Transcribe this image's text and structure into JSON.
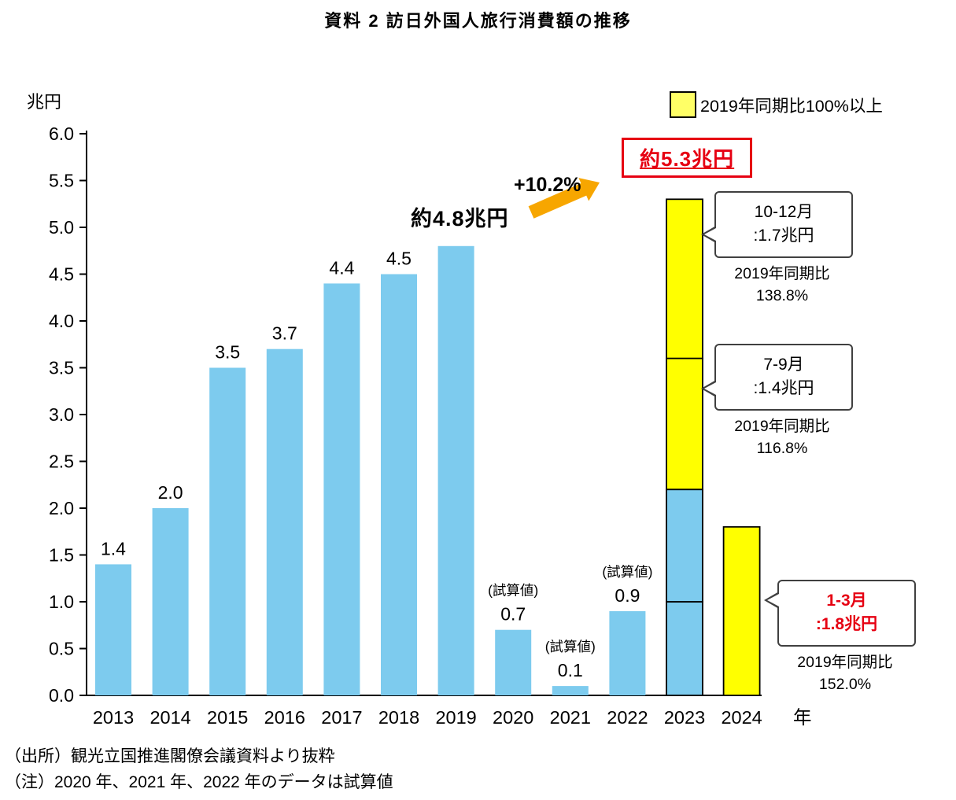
{
  "title": "資料 2 訪日外国人旅行消費額の推移",
  "y_axis_unit": "兆円",
  "legend": {
    "label": "2019年同期比100%以上"
  },
  "annotations": {
    "value_2019": "約4.8兆円",
    "growth": "+10.2%",
    "value_2023": "約5.3兆円"
  },
  "callouts": [
    {
      "line1": "10-12月",
      "line2": ":1.7兆円",
      "sub1": "2019年同期比",
      "sub2": "138.8%"
    },
    {
      "line1": "7-9月",
      "line2": ":1.4兆円",
      "sub1": "2019年同期比",
      "sub2": "116.8%"
    },
    {
      "line1": "1-3月",
      "line2": ":1.8兆円",
      "sub1": "2019年同期比",
      "sub2": "152.0%"
    }
  ],
  "notes": [
    "（出所）観光立国推進閣僚会議資料より抜粋",
    "（注）2020 年、2021 年、2022 年のデータは試算値"
  ],
  "chart_data": {
    "type": "bar",
    "title": "資料 2 訪日外国人旅行消費額の推移",
    "ylabel": "兆円",
    "xlabel": "年",
    "ylim": [
      0,
      6.0
    ],
    "ytick_labels": [
      "0.0",
      "0.5",
      "1.0",
      "1.5",
      "2.0",
      "2.5",
      "3.0",
      "3.5",
      "4.0",
      "4.5",
      "5.0",
      "5.5",
      "6.0"
    ],
    "legend_entries": [
      "2019年同期比100%以上"
    ],
    "colors": {
      "blue": "#7dcbee",
      "yellow": "#ffff00",
      "legend_yellow": "#ffff66",
      "red": "#e60012",
      "orange": "#f7a600"
    },
    "bars": [
      {
        "year": "2013",
        "label": "1.4",
        "segments": [
          {
            "value": 1.4,
            "color": "blue"
          }
        ]
      },
      {
        "year": "2014",
        "label": "2.0",
        "segments": [
          {
            "value": 2.0,
            "color": "blue"
          }
        ]
      },
      {
        "year": "2015",
        "label": "3.5",
        "segments": [
          {
            "value": 3.5,
            "color": "blue"
          }
        ]
      },
      {
        "year": "2016",
        "label": "3.7",
        "segments": [
          {
            "value": 3.7,
            "color": "blue"
          }
        ]
      },
      {
        "year": "2017",
        "label": "4.4",
        "segments": [
          {
            "value": 4.4,
            "color": "blue"
          }
        ]
      },
      {
        "year": "2018",
        "label": "4.5",
        "segments": [
          {
            "value": 4.5,
            "color": "blue"
          }
        ]
      },
      {
        "year": "2019",
        "segments": [
          {
            "value": 4.8,
            "color": "blue"
          }
        ]
      },
      {
        "year": "2020",
        "label": "0.7",
        "note": "(試算値)",
        "segments": [
          {
            "value": 0.7,
            "color": "blue"
          }
        ]
      },
      {
        "year": "2021",
        "label": "0.1",
        "note": "(試算値)",
        "segments": [
          {
            "value": 0.1,
            "color": "blue"
          }
        ]
      },
      {
        "year": "2022",
        "label": "0.9",
        "note": "(試算値)",
        "segments": [
          {
            "value": 0.9,
            "color": "blue"
          }
        ]
      },
      {
        "year": "2023",
        "outlined": true,
        "total": 5.3,
        "segments": [
          {
            "value": 1.0,
            "color": "blue"
          },
          {
            "value": 1.2,
            "color": "blue"
          },
          {
            "value": 1.4,
            "color": "yellow"
          },
          {
            "value": 1.7,
            "color": "yellow"
          }
        ]
      },
      {
        "year": "2024",
        "outlined": true,
        "segments": [
          {
            "value": 1.8,
            "color": "yellow"
          }
        ]
      }
    ]
  }
}
